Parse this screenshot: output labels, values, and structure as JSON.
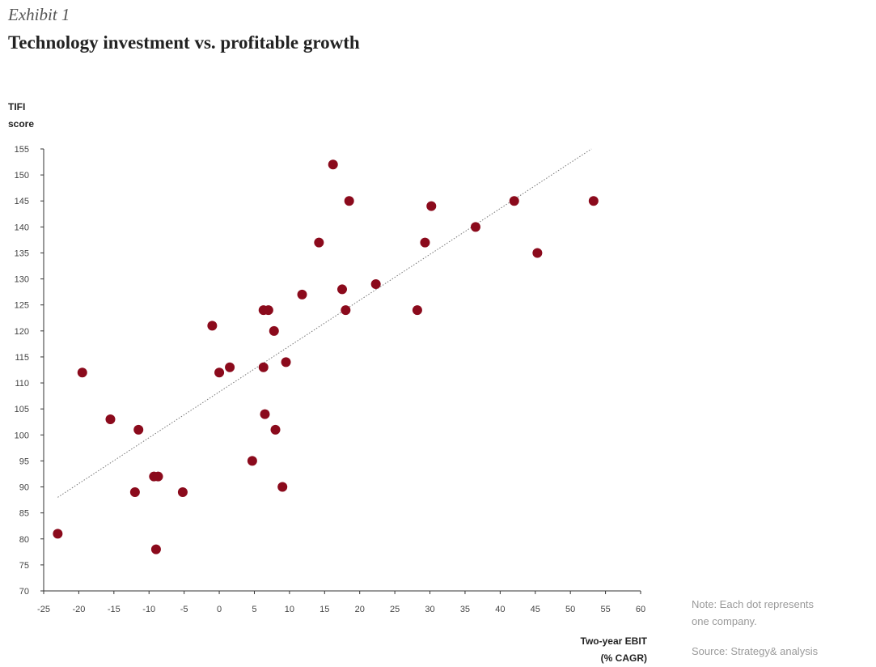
{
  "header": {
    "exhibit": "Exhibit 1",
    "title": "Technology investment vs. profitable growth"
  },
  "notes": {
    "note_line1": "Note: Each dot represents",
    "note_line2": "one company.",
    "source": "Source: Strategy& analysis"
  },
  "colors": {
    "dot": "#8b0a1c",
    "trendline": "#777777",
    "axis": "#333333"
  },
  "chart_data": {
    "type": "scatter",
    "title": "Technology investment vs. profitable growth",
    "ylabel_line1": "TIFI",
    "ylabel_line2": "score",
    "xlabel_line1": "Two-year EBIT",
    "xlabel_line2": "(% CAGR)",
    "xlim": [
      -25,
      60
    ],
    "ylim": [
      70,
      155
    ],
    "xticks": [
      -25,
      -20,
      -15,
      -10,
      -5,
      0,
      5,
      10,
      15,
      20,
      25,
      30,
      35,
      40,
      45,
      50,
      55,
      60
    ],
    "yticks": [
      70,
      75,
      80,
      85,
      90,
      95,
      100,
      105,
      110,
      115,
      120,
      125,
      130,
      135,
      140,
      145,
      150,
      155
    ],
    "grid": false,
    "trendline": {
      "style": "dotted",
      "x": [
        -23,
        53
      ],
      "y": [
        88,
        155
      ]
    },
    "points": [
      {
        "x": -23,
        "y": 81
      },
      {
        "x": -19.5,
        "y": 112
      },
      {
        "x": -15.5,
        "y": 103
      },
      {
        "x": -11.5,
        "y": 101
      },
      {
        "x": -12,
        "y": 89
      },
      {
        "x": -9.3,
        "y": 92
      },
      {
        "x": -8.7,
        "y": 92
      },
      {
        "x": -9,
        "y": 78
      },
      {
        "x": -5.2,
        "y": 89
      },
      {
        "x": -1,
        "y": 121
      },
      {
        "x": 0,
        "y": 112
      },
      {
        "x": 1.5,
        "y": 113
      },
      {
        "x": 4.7,
        "y": 95
      },
      {
        "x": 6.3,
        "y": 124
      },
      {
        "x": 7,
        "y": 124
      },
      {
        "x": 6.3,
        "y": 113
      },
      {
        "x": 6.5,
        "y": 104
      },
      {
        "x": 7.8,
        "y": 120
      },
      {
        "x": 8,
        "y": 101
      },
      {
        "x": 9,
        "y": 90
      },
      {
        "x": 9.5,
        "y": 114
      },
      {
        "x": 11.8,
        "y": 127
      },
      {
        "x": 14.2,
        "y": 137
      },
      {
        "x": 16.2,
        "y": 152
      },
      {
        "x": 17.5,
        "y": 128
      },
      {
        "x": 18.5,
        "y": 145
      },
      {
        "x": 18,
        "y": 124
      },
      {
        "x": 22.3,
        "y": 129
      },
      {
        "x": 28.2,
        "y": 124
      },
      {
        "x": 29.3,
        "y": 137
      },
      {
        "x": 30.2,
        "y": 144
      },
      {
        "x": 36.5,
        "y": 140
      },
      {
        "x": 42,
        "y": 145
      },
      {
        "x": 45.3,
        "y": 135
      },
      {
        "x": 53.3,
        "y": 145
      }
    ]
  }
}
